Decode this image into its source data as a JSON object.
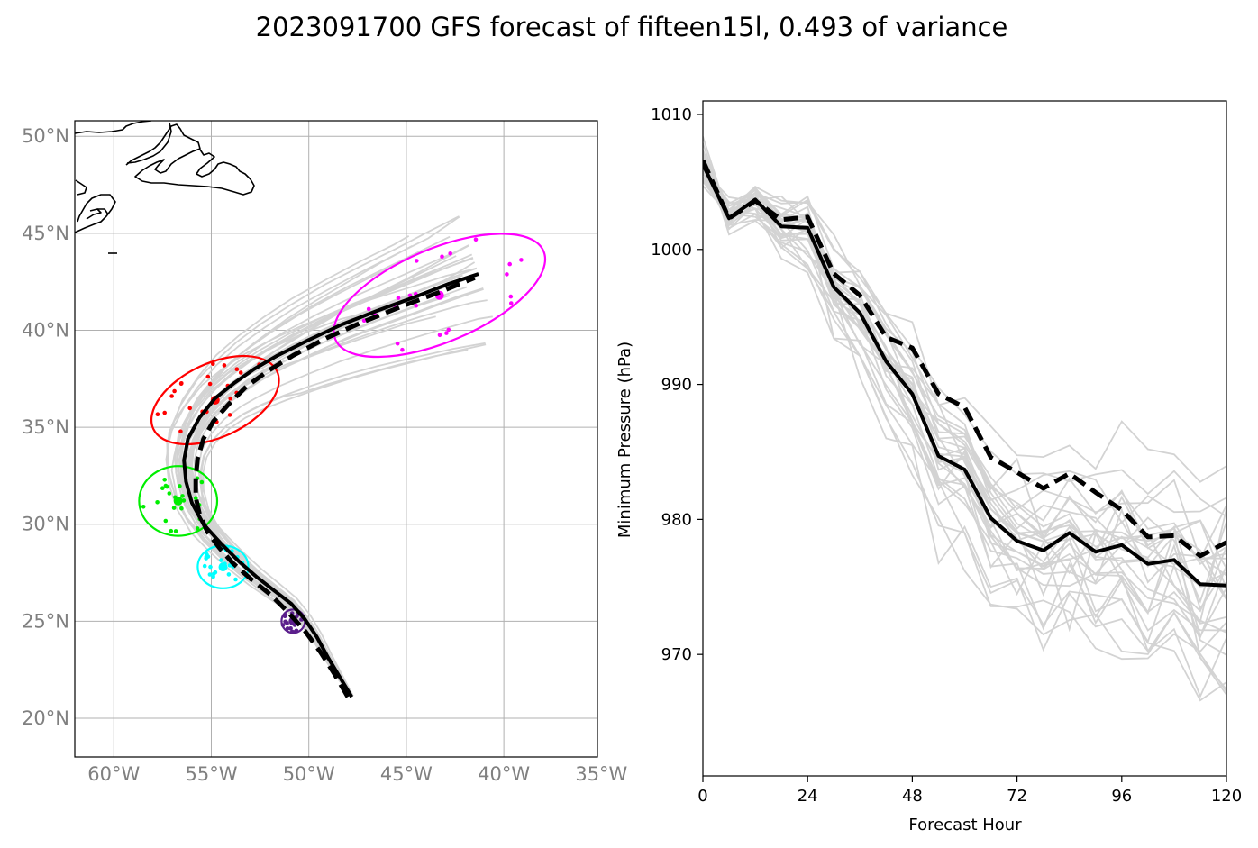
{
  "title": "2023091700 GFS forecast of fifteen15l, 0.493 of variance",
  "chart_data": [
    {
      "type": "line",
      "subtype": "map",
      "lon_ticks": [
        -60,
        -55,
        -50,
        -45,
        -40,
        -35
      ],
      "lon_tick_labels": [
        "60°W",
        "55°W",
        "50°W",
        "45°W",
        "40°W",
        "35°W"
      ],
      "lat_ticks": [
        20,
        25,
        30,
        35,
        40,
        45,
        50
      ],
      "lat_tick_labels": [
        "20°N",
        "25°N",
        "30°N",
        "35°N",
        "40°N",
        "45°N",
        "50°N"
      ],
      "xlim": [
        -62,
        -35.2
      ],
      "ylim": [
        18,
        50.8
      ],
      "grid": true,
      "colors": {
        "ensemble": "#d3d3d3",
        "mean": "#000000",
        "coast": "#000000",
        "tick_labels": "#808080"
      },
      "mean_track": {
        "lon": [
          -47.8,
          -48.4,
          -49.0,
          -49.6,
          -50.2,
          -50.9,
          -51.8,
          -52.7,
          -53.6,
          -54.5,
          -55.4,
          -56.0,
          -56.3,
          -56.4,
          -56.2,
          -55.6,
          -54.8,
          -53.8,
          -52.8,
          -51.6,
          -50.0,
          -48.3,
          -46.5,
          -44.6,
          -42.8,
          -41.3
        ],
        "lat": [
          21.1,
          22.1,
          23.1,
          24.2,
          25.1,
          25.9,
          26.6,
          27.3,
          28.1,
          29.0,
          30.0,
          31.1,
          32.2,
          33.3,
          34.4,
          35.5,
          36.5,
          37.3,
          38.0,
          38.7,
          39.5,
          40.3,
          41.0,
          41.7,
          42.4,
          42.9
        ]
      },
      "control_track": {
        "lon": [
          -48.0,
          -48.7,
          -49.4,
          -50.2,
          -51.1,
          -52.0,
          -53.0,
          -53.9,
          -54.6,
          -55.2,
          -55.6,
          -55.8,
          -55.8,
          -55.7,
          -55.4,
          -54.9,
          -54.1,
          -53.2,
          -52.1,
          -50.8,
          -49.1,
          -47.3,
          -45.3,
          -43.2,
          -41.5
        ],
        "lat": [
          21.1,
          22.3,
          23.4,
          24.5,
          25.5,
          26.4,
          27.2,
          28.0,
          28.8,
          29.6,
          30.5,
          31.4,
          32.4,
          33.4,
          34.4,
          35.3,
          36.2,
          37.1,
          37.9,
          38.7,
          39.6,
          40.4,
          41.2,
          42.0,
          42.7
        ]
      },
      "uncertainty_ellipses": [
        {
          "name": "",
          "color": "#5b1f8c",
          "center": [
            -50.8,
            25.0
          ],
          "semi_axes": [
            0.6,
            0.6
          ],
          "angle": 0
        },
        {
          "name": "",
          "color": "#00ffff",
          "center": [
            -54.4,
            27.8
          ],
          "semi_axes": [
            1.3,
            1.1
          ],
          "angle": 0
        },
        {
          "name": "",
          "color": "#00ee00",
          "center": [
            -56.7,
            31.2
          ],
          "semi_axes": [
            2.0,
            1.8
          ],
          "angle": 0
        },
        {
          "name": "",
          "color": "#ff0000",
          "center": [
            -54.8,
            36.4
          ],
          "semi_axes": [
            3.5,
            1.9
          ],
          "angle": 25
        },
        {
          "name": "",
          "color": "#ff00ff",
          "center": [
            -43.3,
            41.8
          ],
          "semi_axes": [
            5.8,
            2.4
          ],
          "angle": 23
        }
      ]
    },
    {
      "type": "line",
      "xlabel": "Forecast Hour",
      "ylabel": "Minimum Pressure (hPa)",
      "xlim": [
        0,
        120
      ],
      "ylim": [
        961,
        1011
      ],
      "x_ticks": [
        0,
        24,
        48,
        72,
        96,
        120
      ],
      "y_ticks": [
        970,
        980,
        990,
        1000,
        1010
      ],
      "grid": false,
      "x": [
        0,
        6,
        12,
        18,
        24,
        30,
        36,
        42,
        48,
        54,
        60,
        66,
        72,
        78,
        84,
        90,
        96,
        102,
        108,
        114,
        120
      ],
      "series": [
        {
          "name": "",
          "style": "solid",
          "color": "#000000",
          "values": [
            1006.3,
            1002.3,
            1003.7,
            1001.7,
            1001.6,
            997.2,
            995.3,
            991.7,
            989.3,
            984.7,
            983.7,
            980.1,
            978.4,
            977.7,
            979.0,
            977.6,
            978.1,
            976.7,
            977.0,
            975.2,
            975.1
          ]
        },
        {
          "name": "",
          "style": "dashed",
          "color": "#000000",
          "values": [
            1006.6,
            1002.3,
            1003.6,
            1002.2,
            1002.4,
            998.2,
            996.6,
            993.5,
            992.7,
            989.3,
            988.3,
            984.6,
            983.5,
            982.3,
            983.4,
            982.0,
            980.7,
            978.7,
            978.8,
            977.3,
            978.3
          ]
        }
      ]
    }
  ]
}
